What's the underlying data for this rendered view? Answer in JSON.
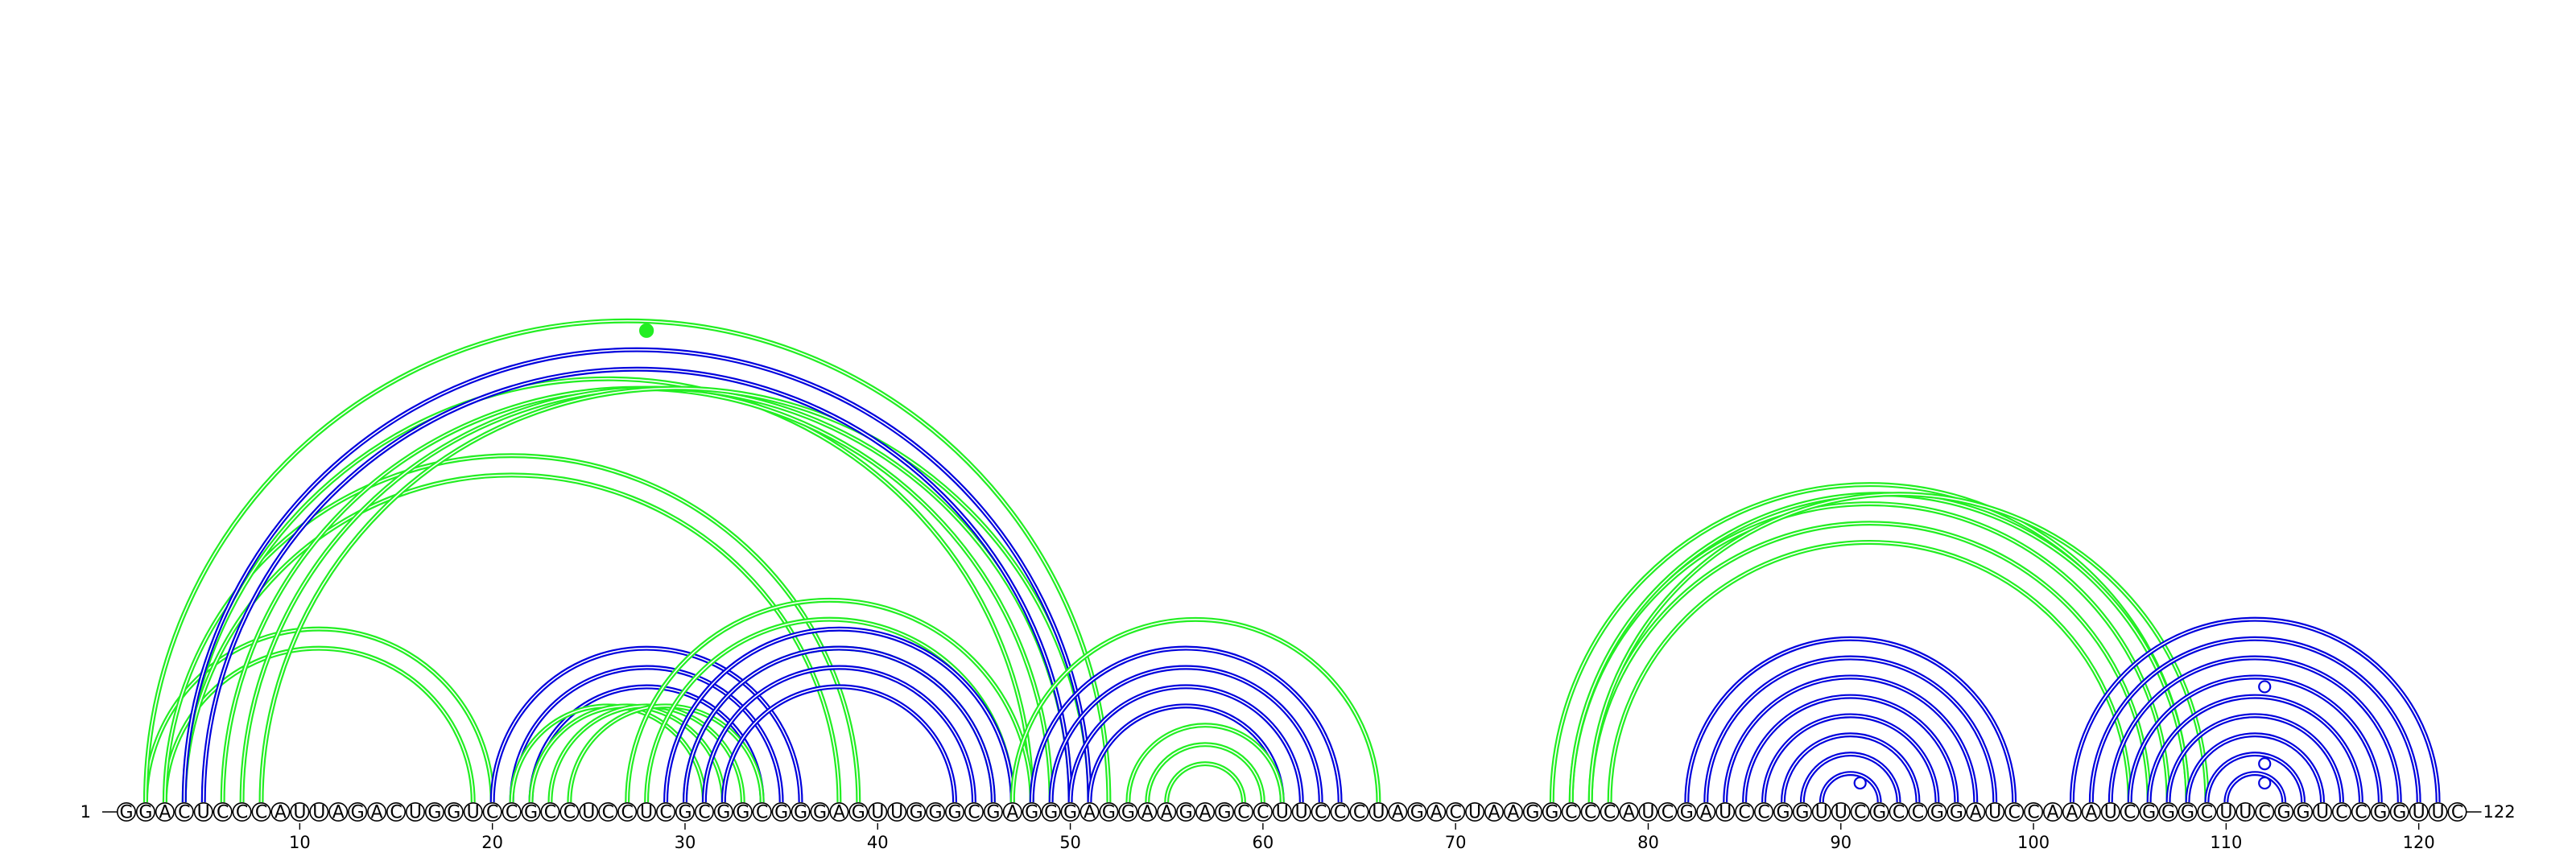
{
  "diagram": {
    "type": "rna-arc-diagram",
    "sequence": "GGACUCCCAUUAGACUGGUCCGCCUCCUCGCGGCGGGAGUUGGGCGAGGGAGGAAGAGCCUUCCCUAGACUAAGGCCCAUCGAUCCGGUUCGCCGGAUCCAAAUCGGGCUUCGGUCCGGUUC",
    "start_label": "1",
    "end_label": "122",
    "tick_labels": [
      "10",
      "20",
      "30",
      "40",
      "50",
      "60",
      "70",
      "80",
      "90",
      "100",
      "110",
      "120"
    ],
    "colors": {
      "blue": "#0000dd",
      "green": "#22ee22",
      "backbone": "#000000"
    },
    "arc_groups": [
      {
        "color": "green",
        "pairs": [
          [
            2,
            20
          ],
          [
            3,
            19
          ],
          [
            3,
            39
          ],
          [
            4,
            38
          ],
          [
            4,
            48
          ],
          [
            6,
            49
          ],
          [
            7,
            50
          ],
          [
            8,
            51
          ],
          [
            2,
            52
          ]
        ]
      },
      {
        "color": "blue",
        "pairs": [
          [
            4,
            51
          ],
          [
            5,
            50
          ]
        ]
      },
      {
        "color": "blue",
        "pairs": [
          [
            20,
            36
          ],
          [
            21,
            35
          ],
          [
            22,
            34
          ]
        ]
      },
      {
        "color": "green",
        "pairs": [
          [
            21,
            31
          ],
          [
            22,
            32
          ],
          [
            23,
            33
          ],
          [
            24,
            34
          ]
        ]
      },
      {
        "color": "green",
        "pairs": [
          [
            27,
            48
          ],
          [
            28,
            47
          ],
          [
            30,
            46
          ]
        ]
      },
      {
        "color": "blue",
        "pairs": [
          [
            29,
            47
          ],
          [
            30,
            46
          ],
          [
            31,
            45
          ],
          [
            32,
            44
          ]
        ]
      },
      {
        "color": "blue",
        "pairs": [
          [
            48,
            64
          ],
          [
            49,
            63
          ],
          [
            50,
            62
          ],
          [
            51,
            61
          ]
        ]
      },
      {
        "color": "green",
        "pairs": [
          [
            47,
            66
          ],
          [
            53,
            61
          ],
          [
            54,
            60
          ],
          [
            55,
            59
          ]
        ]
      },
      {
        "color": "green",
        "pairs": [
          [
            75,
            108
          ],
          [
            76,
            107
          ],
          [
            77,
            106
          ],
          [
            78,
            105
          ]
        ]
      },
      {
        "color": "blue",
        "pairs": [
          [
            82,
            99
          ],
          [
            83,
            98
          ],
          [
            84,
            97
          ],
          [
            85,
            96
          ],
          [
            86,
            95
          ],
          [
            87,
            94
          ],
          [
            88,
            93
          ],
          [
            89,
            92
          ]
        ]
      },
      {
        "color": "green",
        "pairs": [
          [
            108,
            76
          ],
          [
            109,
            77
          ]
        ]
      },
      {
        "color": "blue",
        "pairs": [
          [
            102,
            121
          ],
          [
            103,
            120
          ],
          [
            104,
            119
          ],
          [
            105,
            118
          ],
          [
            106,
            117
          ],
          [
            107,
            116
          ],
          [
            108,
            115
          ],
          [
            109,
            114
          ],
          [
            110,
            113
          ]
        ]
      }
    ],
    "markers": [
      {
        "nt": 28,
        "style": "filled",
        "color": "green",
        "on_arc": [
          3,
          52
        ]
      },
      {
        "nt": 91,
        "style": "open",
        "color": "blue",
        "on_arc": [
          90,
          92
        ]
      },
      {
        "nt": 112,
        "style": "open",
        "color": "blue",
        "on_arc": [
          111,
          113
        ]
      },
      {
        "nt": 112,
        "style": "open",
        "color": "blue",
        "on_arc": [
          110,
          114
        ]
      },
      {
        "nt": 112,
        "style": "open",
        "color": "blue",
        "on_arc": [
          106,
          118
        ]
      }
    ]
  }
}
